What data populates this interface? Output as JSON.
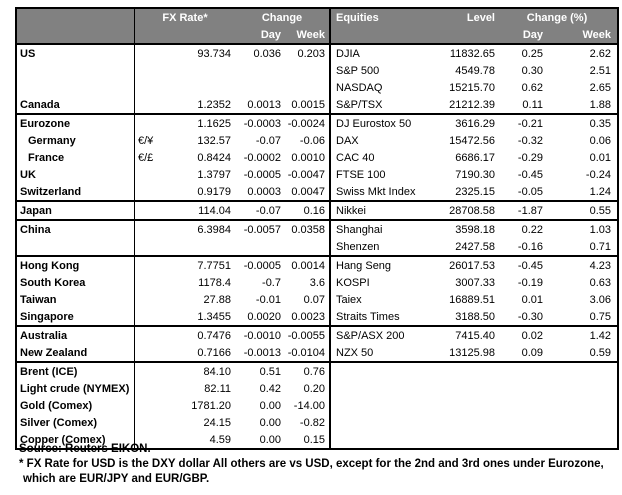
{
  "colors": {
    "header_bg": "#818181",
    "header_text": "#ffffff",
    "border": "#000000",
    "text": "#000000"
  },
  "header": {
    "fx_rate": "FX Rate*",
    "change": "Change",
    "day": "Day",
    "week": "Week",
    "equities": "Equities",
    "level": "Level",
    "change_pct": "Change (%)",
    "day2": "Day",
    "week2": "Week"
  },
  "rows": [
    {
      "sep": false,
      "indent": false,
      "name": "US",
      "sym": "",
      "fx": "93.734",
      "day": "0.036",
      "week": "0.203",
      "ename": "DJIA",
      "level": "11832.65",
      "eday": "0.25",
      "eweek": "2.62"
    },
    {
      "sep": false,
      "indent": false,
      "name": "",
      "sym": "",
      "fx": "",
      "day": "",
      "week": "",
      "ename": "S&P 500",
      "level": "4549.78",
      "eday": "0.30",
      "eweek": "2.51"
    },
    {
      "sep": false,
      "indent": false,
      "name": "",
      "sym": "",
      "fx": "",
      "day": "",
      "week": "",
      "ename": "NASDAQ",
      "level": "15215.70",
      "eday": "0.62",
      "eweek": "2.65"
    },
    {
      "sep": false,
      "indent": false,
      "name": "Canada",
      "sym": "",
      "fx": "1.2352",
      "day": "0.0013",
      "week": "0.0015",
      "ename": "S&P/TSX",
      "level": "21212.39",
      "eday": "0.11",
      "eweek": "1.88"
    },
    {
      "sep": true,
      "indent": false,
      "name": "Eurozone",
      "sym": "",
      "fx": "1.1625",
      "day": "-0.0003",
      "week": "-0.0024",
      "ename": "DJ Eurostox 50",
      "level": "3616.29",
      "eday": "-0.21",
      "eweek": "0.35"
    },
    {
      "sep": false,
      "indent": true,
      "name": "Germany",
      "sym": "€/¥",
      "fx": "132.57",
      "day": "-0.07",
      "week": "-0.06",
      "ename": "DAX",
      "level": "15472.56",
      "eday": "-0.32",
      "eweek": "0.06"
    },
    {
      "sep": false,
      "indent": true,
      "name": "France",
      "sym": "€/£",
      "fx": "0.8424",
      "day": "-0.0002",
      "week": "0.0010",
      "ename": "CAC 40",
      "level": "6686.17",
      "eday": "-0.29",
      "eweek": "0.01"
    },
    {
      "sep": false,
      "indent": false,
      "name": "UK",
      "sym": "",
      "fx": "1.3797",
      "day": "-0.0005",
      "week": "-0.0047",
      "ename": "FTSE 100",
      "level": "7190.30",
      "eday": "-0.45",
      "eweek": "-0.24"
    },
    {
      "sep": false,
      "indent": false,
      "name": "Switzerland",
      "sym": "",
      "fx": "0.9179",
      "day": "0.0003",
      "week": "0.0047",
      "ename": "Swiss Mkt Index",
      "level": "2325.15",
      "eday": "-0.05",
      "eweek": "1.24"
    },
    {
      "sep": true,
      "indent": false,
      "name": "Japan",
      "sym": "",
      "fx": "114.04",
      "day": "-0.07",
      "week": "0.16",
      "ename": "Nikkei",
      "level": "28708.58",
      "eday": "-1.87",
      "eweek": "0.55"
    },
    {
      "sep": true,
      "indent": false,
      "name": "China",
      "sym": "",
      "fx": "6.3984",
      "day": "-0.0057",
      "week": "0.0358",
      "ename": "Shanghai",
      "level": "3598.18",
      "eday": "0.22",
      "eweek": "1.03"
    },
    {
      "sep": false,
      "indent": false,
      "name": "",
      "sym": "",
      "fx": "",
      "day": "",
      "week": "",
      "ename": "Shenzen",
      "level": "2427.58",
      "eday": "-0.16",
      "eweek": "0.71"
    },
    {
      "sep": true,
      "indent": false,
      "name": "Hong Kong",
      "sym": "",
      "fx": "7.7751",
      "day": "-0.0005",
      "week": "0.0014",
      "ename": "Hang Seng",
      "level": "26017.53",
      "eday": "-0.45",
      "eweek": "4.23"
    },
    {
      "sep": false,
      "indent": false,
      "name": "South Korea",
      "sym": "",
      "fx": "1178.4",
      "day": "-0.7",
      "week": "3.6",
      "ename": "KOSPI",
      "level": "3007.33",
      "eday": "-0.19",
      "eweek": "0.63"
    },
    {
      "sep": false,
      "indent": false,
      "name": "Taiwan",
      "sym": "",
      "fx": "27.88",
      "day": "-0.01",
      "week": "0.07",
      "ename": "Taiex",
      "level": "16889.51",
      "eday": "0.01",
      "eweek": "3.06"
    },
    {
      "sep": false,
      "indent": false,
      "name": "Singapore",
      "sym": "",
      "fx": "1.3455",
      "day": "0.0020",
      "week": "0.0023",
      "ename": "Straits Times",
      "level": "3188.50",
      "eday": "-0.30",
      "eweek": "0.75"
    },
    {
      "sep": true,
      "indent": false,
      "name": "Australia",
      "sym": "",
      "fx": "0.7476",
      "day": "-0.0010",
      "week": "-0.0055",
      "ename": "S&P/ASX  200",
      "level": "7415.40",
      "eday": "0.02",
      "eweek": "1.42"
    },
    {
      "sep": false,
      "indent": false,
      "name": "New Zealand",
      "sym": "",
      "fx": "0.7166",
      "day": "-0.0013",
      "week": "-0.0104",
      "ename": "NZX 50",
      "level": "13125.98",
      "eday": "0.09",
      "eweek": "0.59"
    },
    {
      "sep": true,
      "indent": false,
      "name": "Brent (ICE)",
      "sym": "",
      "fx": "84.10",
      "day": "0.51",
      "week": "0.76",
      "ename": "",
      "level": "",
      "eday": "",
      "eweek": ""
    },
    {
      "sep": false,
      "indent": false,
      "name": "Light crude (NYMEX)",
      "sym": "",
      "fx": "82.11",
      "day": "0.42",
      "week": "0.20",
      "ename": "",
      "level": "",
      "eday": "",
      "eweek": ""
    },
    {
      "sep": false,
      "indent": false,
      "name": "Gold (Comex)",
      "sym": "",
      "fx": "1781.20",
      "day": "0.00",
      "week": "-14.00",
      "ename": "",
      "level": "",
      "eday": "",
      "eweek": ""
    },
    {
      "sep": false,
      "indent": false,
      "name": "Silver (Comex)",
      "sym": "",
      "fx": "24.15",
      "day": "0.00",
      "week": "-0.82",
      "ename": "",
      "level": "",
      "eday": "",
      "eweek": ""
    },
    {
      "sep": false,
      "indent": false,
      "name": "Copper (Comex)",
      "sym": "",
      "fx": "4.59",
      "day": "0.00",
      "week": "0.15",
      "ename": "",
      "level": "",
      "eday": "",
      "eweek": ""
    }
  ],
  "footer": {
    "line1": "Source:  Reuters EIKON.",
    "line2": "* FX Rate for USD is the DXY dollar  All others are vs USD, except for the 2nd and 3rd ones under Eurozone,",
    "line3": "which are EUR/JPY and EUR/GBP."
  }
}
